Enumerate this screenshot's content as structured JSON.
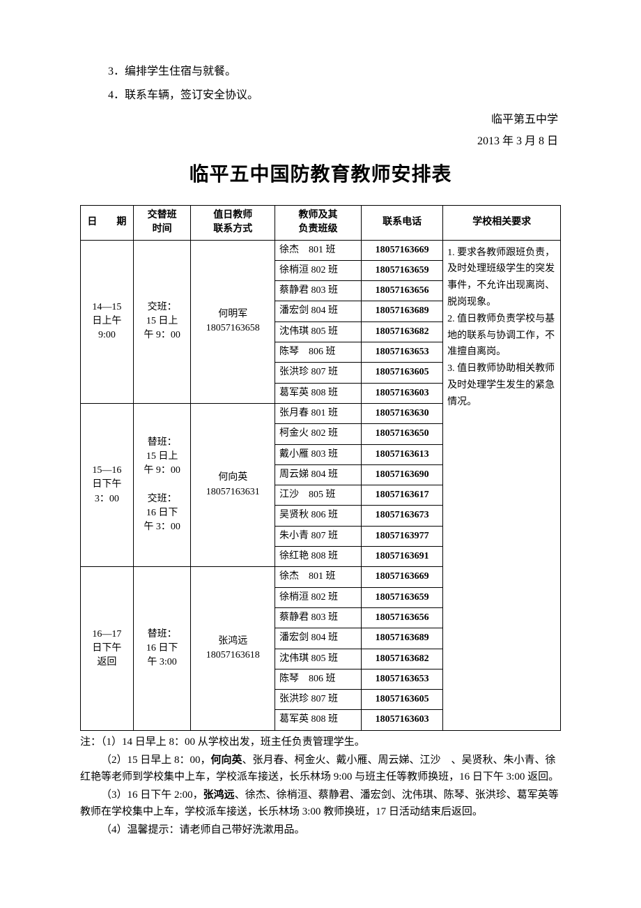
{
  "pre_items": [
    "3．编排学生住宿与就餐。",
    "4．联系车辆，签订安全协议。"
  ],
  "school_name": "临平第五中学",
  "doc_date": "2013 年 3 月 8 日",
  "title": "临平五中国防教育教师安排表",
  "columns": {
    "date": "日　　期",
    "shift": "交替班\n时间",
    "duty": "值日教师\n联系方式",
    "teacher": "教师及其\n负责班级",
    "phone": "联系电话",
    "req": "学校相关要求"
  },
  "groups": [
    {
      "date": "14—15\n日上午\n9:00",
      "shift": "交班：\n15 日上\n午 9：00",
      "duty": "何明军\n18057163658",
      "rows": [
        {
          "teacher": "徐杰　801 班",
          "phone": "18057163669"
        },
        {
          "teacher": "徐梢洹 802 班",
          "phone": "18057163659"
        },
        {
          "teacher": "蔡静君 803 班",
          "phone": "18057163656"
        },
        {
          "teacher": "潘宏剑 804 班",
          "phone": "18057163689"
        },
        {
          "teacher": "沈伟琪 805 班",
          "phone": "18057163682"
        },
        {
          "teacher": "陈琴　806 班",
          "phone": "18057163653"
        },
        {
          "teacher": "张洪珍 807 班",
          "phone": "18057163605"
        },
        {
          "teacher": "葛军英 808 班",
          "phone": "18057163603"
        }
      ]
    },
    {
      "date": "15—16\n日下午\n3：00",
      "shift": "替班：\n15 日上\n午 9：00\n\n交班：\n16 日下\n午 3：00",
      "duty": "何向英\n18057163631",
      "rows": [
        {
          "teacher": "张月春 801 班",
          "phone": "18057163630"
        },
        {
          "teacher": "柯金火 802 班",
          "phone": "18057163650"
        },
        {
          "teacher": "戴小雁 803 班",
          "phone": "18057163613"
        },
        {
          "teacher": "周云娣 804 班",
          "phone": "18057163690"
        },
        {
          "teacher": "江沙　805 班",
          "phone": "18057163617"
        },
        {
          "teacher": "吴贤秋 806 班",
          "phone": "18057163673"
        },
        {
          "teacher": "朱小青 807 班",
          "phone": "18057163977"
        },
        {
          "teacher": "徐红艳 808 班",
          "phone": "18057163691"
        }
      ]
    },
    {
      "date": "16—17\n日下午\n返回",
      "shift": "替班：\n16 日下\n午 3:00",
      "duty": "张鸿远\n18057163618",
      "rows": [
        {
          "teacher": "徐杰　801 班",
          "phone": "18057163669"
        },
        {
          "teacher": "徐梢洹 802 班",
          "phone": "18057163659"
        },
        {
          "teacher": "蔡静君 803 班",
          "phone": "18057163656"
        },
        {
          "teacher": "潘宏剑 804 班",
          "phone": "18057163689"
        },
        {
          "teacher": "沈伟琪 805 班",
          "phone": "18057163682"
        },
        {
          "teacher": "陈琴　806 班",
          "phone": "18057163653"
        },
        {
          "teacher": "张洪珍 807 班",
          "phone": "18057163605"
        },
        {
          "teacher": "葛军英 808 班",
          "phone": "18057163603"
        }
      ]
    }
  ],
  "requirements": [
    "1. 要求各教师跟班负责，及时处理班级学生的突发事件，不允许出现离岗、脱岗现象。",
    "2. 值日教师负责学校与基地的联系与协调工作，不准擅自离岗。",
    "3. 值日教师协助相关教师及时处理学生发生的紧急情况。"
  ],
  "notes": {
    "n1": "注：（1）14 日早上 8：00 从学校出发，班主任负责管理学生。",
    "n2a": "（2）15 日早上 8：00，",
    "n2b": "何向英",
    "n2c": "、张月春、柯金火、戴小雁、周云娣、江沙　、吴贤秋、朱小青、徐红艳等老师到学校集中上车，学校派车接送，长乐林场 9:00 与班主任等教师换班，16 日下午 3:00 返回。",
    "n3a": "（3）16 日下午 2:00，",
    "n3b": "张鸿远",
    "n3c": "、徐杰、徐梢洹、蔡静君、潘宏剑、沈伟琪、陈琴、张洪珍、葛军英等教师在学校集中上车，学校派车接送，长乐林场 3:00 教师换班，17 日活动结束后返回。",
    "n4": "（4）温馨提示：请老师自己带好洗漱用品。"
  },
  "style": {
    "text_color": "#000000",
    "bg_color": "#ffffff",
    "border_color": "#000000",
    "title_fontsize": 28,
    "body_fontsize": 16,
    "table_fontsize": 14
  }
}
